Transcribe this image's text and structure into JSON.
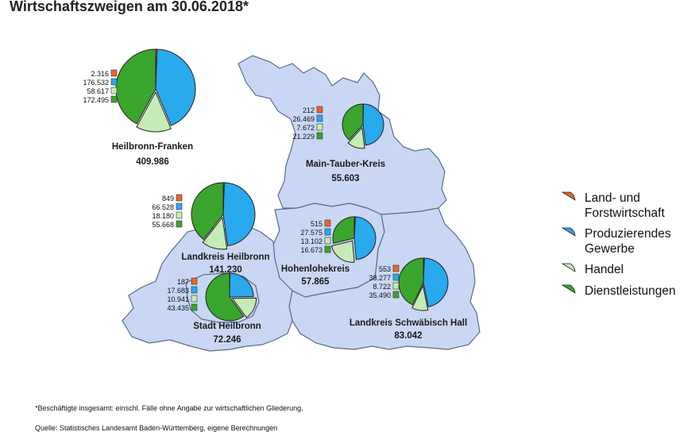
{
  "title": "Wirtschaftszweigen am 30.06.2018*",
  "colors": {
    "land": "#e8662c",
    "prod": "#29a9ee",
    "handel": "#c5ecb6",
    "dienst": "#3aa52c",
    "region": "#c9d7f5"
  },
  "legend": [
    {
      "key": "land",
      "label": "Land- und Forstwirtschaft",
      "icon": "orange-pie-wedge-icon"
    },
    {
      "key": "prod",
      "label": "Produzierendes Gewerbe",
      "icon": "blue-pie-wedge-icon"
    },
    {
      "key": "handel",
      "label": "Handel",
      "icon": "lightgreen-pie-wedge-icon"
    },
    {
      "key": "dienst",
      "label": "Dienstleistungen",
      "icon": "green-pie-wedge-icon"
    }
  ],
  "regions": [
    {
      "name": "Heilbronn-Franken",
      "total": "409.986",
      "values": [
        "2.316",
        "176.532",
        "58.617",
        "172.495"
      ]
    },
    {
      "name": "Main-Tauber-Kreis",
      "total": "55.603",
      "values": [
        "212",
        "26.469",
        "7.672",
        "21.229"
      ]
    },
    {
      "name": "Landkreis Heilbronn",
      "total": "141.230",
      "values": [
        "849",
        "66.528",
        "18.180",
        "55.668"
      ]
    },
    {
      "name": "Hohenlohekreis",
      "total": "57.865",
      "values": [
        "515",
        "27.575",
        "13.102",
        "16.673"
      ]
    },
    {
      "name": "Stadt Heilbronn",
      "total": "72.246",
      "values": [
        "187",
        "17.683",
        "10.941",
        "43.435"
      ]
    },
    {
      "name": "Landkreis Schwäbisch Hall",
      "total": "83.042",
      "values": [
        "553",
        "38.277",
        "8.722",
        "35.490"
      ]
    }
  ],
  "footnote1": "*Beschäftigte insgesamt: einschl. Fälle ohne Angabe zur wirtschaftlichen Gliederung.",
  "footnote2": "Quelle: Statistisches Landesamt Baden-Württemberg, eigene Berechnungen"
}
